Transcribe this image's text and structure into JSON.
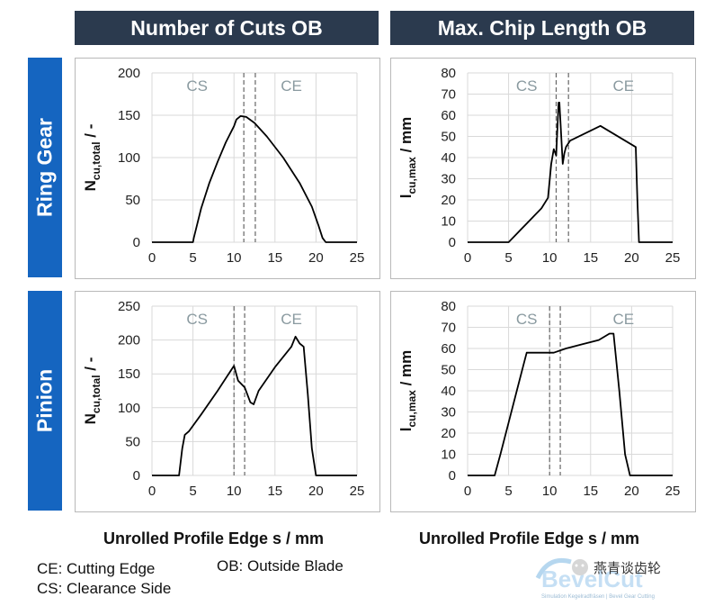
{
  "headers": {
    "col1": "Number of Cuts OB",
    "col2": "Max. Chip Length OB",
    "row1": "Ring Gear",
    "row2": "Pinion"
  },
  "xlabel_left": "Unrolled Profile Edge s / mm",
  "xlabel_right": "Unrolled Profile Edge s / mm",
  "legend": {
    "ce": "CE: Cutting Edge",
    "cs": "CS: Clearance Side",
    "ob": "OB: Outside Blade"
  },
  "watermark": {
    "logo_text": "BevelCut",
    "logo_sub": "Simulation Kegelradfräsen | Bevel Gear Cutting",
    "channel_text": "燕青谈齿轮"
  },
  "colors": {
    "header_dark": "#2b3a4e",
    "row_blue": "#1565c0",
    "line": "#000000",
    "grid": "#d9d9d9",
    "region_label": "#8a9aa0"
  },
  "chart_data": [
    {
      "type": "line",
      "ylabel_main": "N",
      "ylabel_sub": "cu,total",
      "ylabel_tail": " / -",
      "xlim": [
        0,
        25
      ],
      "ylim": [
        0,
        200
      ],
      "xticks": [
        "0",
        "5",
        "10",
        "15",
        "20",
        "25"
      ],
      "yticks": [
        "0",
        "50",
        "100",
        "150",
        "200"
      ],
      "grid": true,
      "region_labels": [
        "CS",
        "CE"
      ],
      "region_label_x": [
        5.5,
        17
      ],
      "dashed_x": [
        11.2,
        12.6
      ],
      "x": [
        0,
        5,
        5.1,
        6,
        7,
        8,
        9,
        10,
        10.3,
        10.8,
        11.5,
        12.5,
        14,
        16,
        18,
        19.5,
        20.3,
        20.8,
        21.2,
        25
      ],
      "y": [
        0,
        0,
        5,
        40,
        70,
        95,
        118,
        137,
        145,
        149,
        148,
        141,
        125,
        100,
        70,
        42,
        20,
        5,
        0,
        0
      ]
    },
    {
      "type": "line",
      "ylabel_main": "l",
      "ylabel_sub": "cu,max",
      "ylabel_tail": " / mm",
      "xlim": [
        0,
        25
      ],
      "ylim": [
        0,
        80
      ],
      "xticks": [
        "0",
        "5",
        "10",
        "15",
        "20",
        "25"
      ],
      "yticks": [
        "0",
        "10",
        "20",
        "30",
        "40",
        "50",
        "60",
        "70",
        "80"
      ],
      "grid": true,
      "region_labels": [
        "CS",
        "CE"
      ],
      "region_label_x": [
        7.2,
        19
      ],
      "dashed_x": [
        10.8,
        12.3
      ],
      "x": [
        0,
        5,
        6,
        7,
        8,
        9,
        9.8,
        10.2,
        10.5,
        10.8,
        11.1,
        11.2,
        11.6,
        11.8,
        12,
        12.5,
        16.2,
        20.5,
        20.7,
        20.9,
        25
      ],
      "y": [
        0,
        0,
        4,
        8,
        12,
        16,
        21,
        37,
        44,
        41,
        66,
        66,
        37,
        42,
        45,
        48,
        55,
        45,
        20,
        0,
        0
      ]
    },
    {
      "type": "line",
      "ylabel_main": "N",
      "ylabel_sub": "cu,total",
      "ylabel_tail": " / -",
      "xlim": [
        0,
        25
      ],
      "ylim": [
        0,
        250
      ],
      "xticks": [
        "0",
        "5",
        "10",
        "15",
        "20",
        "25"
      ],
      "yticks": [
        "0",
        "50",
        "100",
        "150",
        "200",
        "250"
      ],
      "grid": true,
      "region_labels": [
        "CS",
        "CE"
      ],
      "region_label_x": [
        5.5,
        17
      ],
      "dashed_x": [
        10,
        11.3
      ],
      "x": [
        0,
        3.3,
        3.7,
        4,
        4.5,
        6,
        8,
        10,
        10.5,
        11.3,
        12,
        12.4,
        13,
        15,
        17,
        17.5,
        18,
        18.5,
        19,
        19.5,
        20,
        25
      ],
      "y": [
        0,
        0,
        40,
        60,
        65,
        90,
        125,
        162,
        140,
        130,
        108,
        105,
        125,
        160,
        190,
        205,
        195,
        190,
        120,
        40,
        0,
        0
      ]
    },
    {
      "type": "line",
      "ylabel_main": "l",
      "ylabel_sub": "cu,max",
      "ylabel_tail": " / mm",
      "xlim": [
        0,
        25
      ],
      "ylim": [
        0,
        80
      ],
      "xticks": [
        "0",
        "5",
        "10",
        "15",
        "20",
        "25"
      ],
      "yticks": [
        "0",
        "10",
        "20",
        "30",
        "40",
        "50",
        "60",
        "70",
        "80"
      ],
      "grid": true,
      "region_labels": [
        "CS",
        "CE"
      ],
      "region_label_x": [
        7.2,
        19
      ],
      "dashed_x": [
        10,
        11.3
      ],
      "x": [
        0,
        3.3,
        4,
        5,
        6,
        6.8,
        7.2,
        9,
        10.5,
        12,
        14,
        16,
        17.3,
        17.8,
        18.5,
        19.2,
        19.8,
        25
      ],
      "y": [
        0,
        0,
        10,
        25,
        40,
        52,
        58,
        58,
        58,
        60,
        62,
        64,
        67,
        67,
        40,
        10,
        0,
        0
      ]
    }
  ]
}
